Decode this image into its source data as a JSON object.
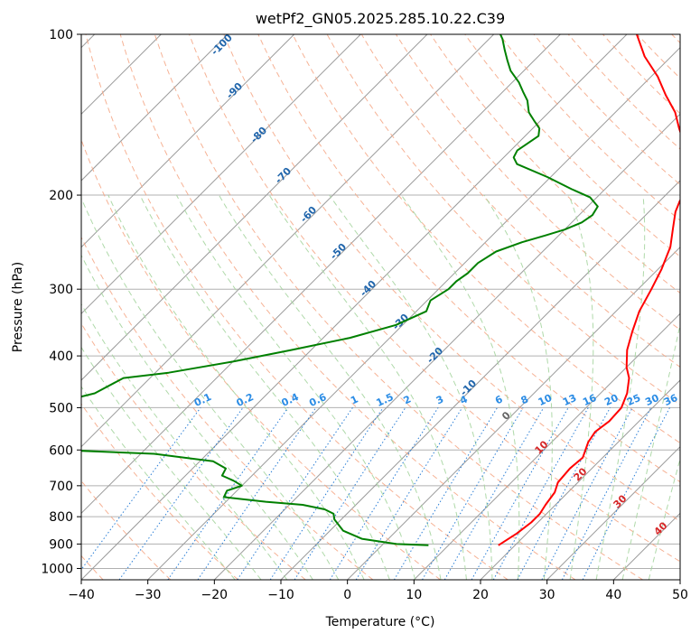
{
  "chart_data": {
    "type": "line",
    "title": "wetPf2_GN05.2025.285.10.22.C39",
    "xlabel": "Temperature (°C)",
    "ylabel": "Pressure (hPa)",
    "xlim": [
      -40,
      50
    ],
    "ylim": [
      1050,
      100
    ],
    "y_scale": "log",
    "x_ticks": [
      "−40",
      "−30",
      "−20",
      "−10",
      "0",
      "10",
      "20",
      "30",
      "40",
      "50"
    ],
    "y_ticks": [
      "100",
      "200",
      "300",
      "400",
      "500",
      "600",
      "700",
      "800",
      "900",
      "1000"
    ],
    "grid": true,
    "skew": 35,
    "series": [
      {
        "color": "#ff0000",
        "points": [
          [
            17.5,
            905
          ],
          [
            18.5,
            860
          ],
          [
            19.0,
            820
          ],
          [
            19.0,
            790
          ],
          [
            18.5,
            760
          ],
          [
            18.0,
            720
          ],
          [
            17.0,
            690
          ],
          [
            16.7,
            650
          ],
          [
            17.0,
            620
          ],
          [
            15.5,
            580
          ],
          [
            15.0,
            555
          ],
          [
            15.5,
            530
          ],
          [
            15.3,
            500
          ],
          [
            14.0,
            470
          ],
          [
            12.0,
            440
          ],
          [
            10.0,
            420
          ],
          [
            7.5,
            390
          ],
          [
            5.5,
            360
          ],
          [
            3.5,
            330
          ],
          [
            2.0,
            300
          ],
          [
            0.5,
            275
          ],
          [
            -1.5,
            250
          ],
          [
            -4.0,
            230
          ],
          [
            -6.0,
            215
          ],
          [
            -7.0,
            205
          ],
          [
            -7.5,
            195
          ],
          [
            -9.5,
            180
          ],
          [
            -12.5,
            170
          ],
          [
            -15.0,
            160
          ],
          [
            -18.0,
            150
          ],
          [
            -21.0,
            140
          ],
          [
            -25.0,
            130
          ],
          [
            -29.0,
            120
          ],
          [
            -34.0,
            110
          ],
          [
            -38.5,
            100
          ]
        ]
      },
      {
        "color": "#008000",
        "points": [
          [
            7.0,
            905
          ],
          [
            2.0,
            900
          ],
          [
            -4.0,
            880
          ],
          [
            -8.0,
            850
          ],
          [
            -11.0,
            810
          ],
          [
            -12.0,
            790
          ],
          [
            -14.0,
            775
          ],
          [
            -18.0,
            760
          ],
          [
            -24.0,
            750
          ],
          [
            -31.0,
            735
          ],
          [
            -31.5,
            715
          ],
          [
            -30.0,
            700
          ],
          [
            -32.0,
            685
          ],
          [
            -34.5,
            670
          ],
          [
            -35.0,
            650
          ],
          [
            -38.0,
            630
          ],
          [
            -48.0,
            610
          ],
          [
            -70.0,
            595
          ],
          [
            -90.0,
            590
          ],
          [
            -66.0,
            470
          ],
          [
            -64.0,
            440
          ],
          [
            -58.0,
            430
          ],
          [
            -50.0,
            410
          ],
          [
            -43.0,
            390
          ],
          [
            -36.0,
            370
          ],
          [
            -31.0,
            350
          ],
          [
            -28.5,
            330
          ],
          [
            -29.5,
            315
          ],
          [
            -28.5,
            300
          ],
          [
            -28.5,
            290
          ],
          [
            -28.0,
            280
          ],
          [
            -28.0,
            268
          ],
          [
            -27.0,
            255
          ],
          [
            -24.5,
            245
          ],
          [
            -22.0,
            238
          ],
          [
            -20.0,
            232
          ],
          [
            -18.5,
            225
          ],
          [
            -18.0,
            218
          ],
          [
            -18.5,
            210
          ],
          [
            -21.0,
            202
          ],
          [
            -25.0,
            195
          ],
          [
            -30.5,
            185
          ],
          [
            -37.0,
            175
          ],
          [
            -38.5,
            170
          ],
          [
            -39.0,
            165
          ],
          [
            -38.5,
            160
          ],
          [
            -38.0,
            155
          ],
          [
            -39.0,
            150
          ],
          [
            -41.0,
            145
          ],
          [
            -43.0,
            140
          ],
          [
            -45.0,
            133
          ],
          [
            -47.0,
            128
          ],
          [
            -49.0,
            123
          ],
          [
            -52.0,
            117
          ],
          [
            -54.0,
            112
          ],
          [
            -56.0,
            107
          ],
          [
            -58.0,
            102
          ],
          [
            -59.0,
            100
          ]
        ]
      }
    ],
    "annotations": {
      "dry_adiabat_labels": [
        "-100",
        "-90",
        "-80",
        "-70",
        "-60",
        "-50",
        "-40",
        "-30",
        "-20",
        "-10"
      ],
      "mixing_ratio_labels": [
        "0.1",
        "0.2",
        "0.4",
        "0.6",
        "1",
        "1.5",
        "2",
        "3",
        "4",
        "6",
        "8",
        "10",
        "13",
        "16",
        "20",
        "25",
        "30",
        "36"
      ],
      "moist_adiabat_labels": [
        "0",
        "10",
        "20",
        "30",
        "40"
      ]
    },
    "line_colors": {
      "isotherm": "#9a9a9a",
      "dry_adiabat": "#f4a582",
      "moist_adiabat": "#a6d5a0",
      "mixing_ratio": "#1f77d4",
      "dry_label": "#2166ac",
      "mixing_label": "#2b8ce5",
      "moist_label": "#d62728",
      "zero_label": "#666666"
    }
  }
}
